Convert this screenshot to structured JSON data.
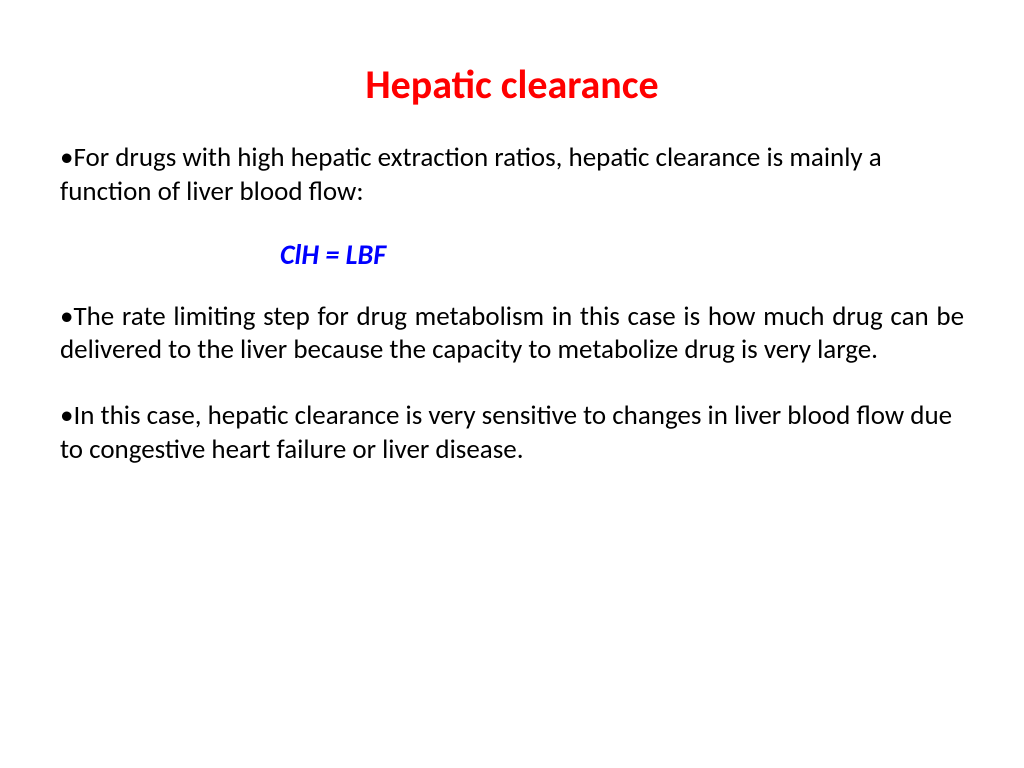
{
  "title": {
    "text": "Hepatic clearance",
    "color": "#ff0000",
    "fontsize": 40,
    "weight": 700
  },
  "formula": {
    "text": "ClH = LBF",
    "color": "#0000ff",
    "fontsize": 28,
    "weight": 700,
    "style": "italic"
  },
  "body": {
    "color": "#000000",
    "fontsize": 27,
    "b1": "For drugs with high hepatic extraction ratios, hepatic clearance is mainly a function of liver blood flow:",
    "b2": "The rate limiting step for drug metabolism in this case is how much drug can be delivered to the liver because the capacity to metabolize drug is very large.",
    "b3": "In this case, hepatic clearance is very sensitive to changes in liver blood flow due to congestive heart failure or liver disease."
  },
  "background_color": "#ffffff"
}
